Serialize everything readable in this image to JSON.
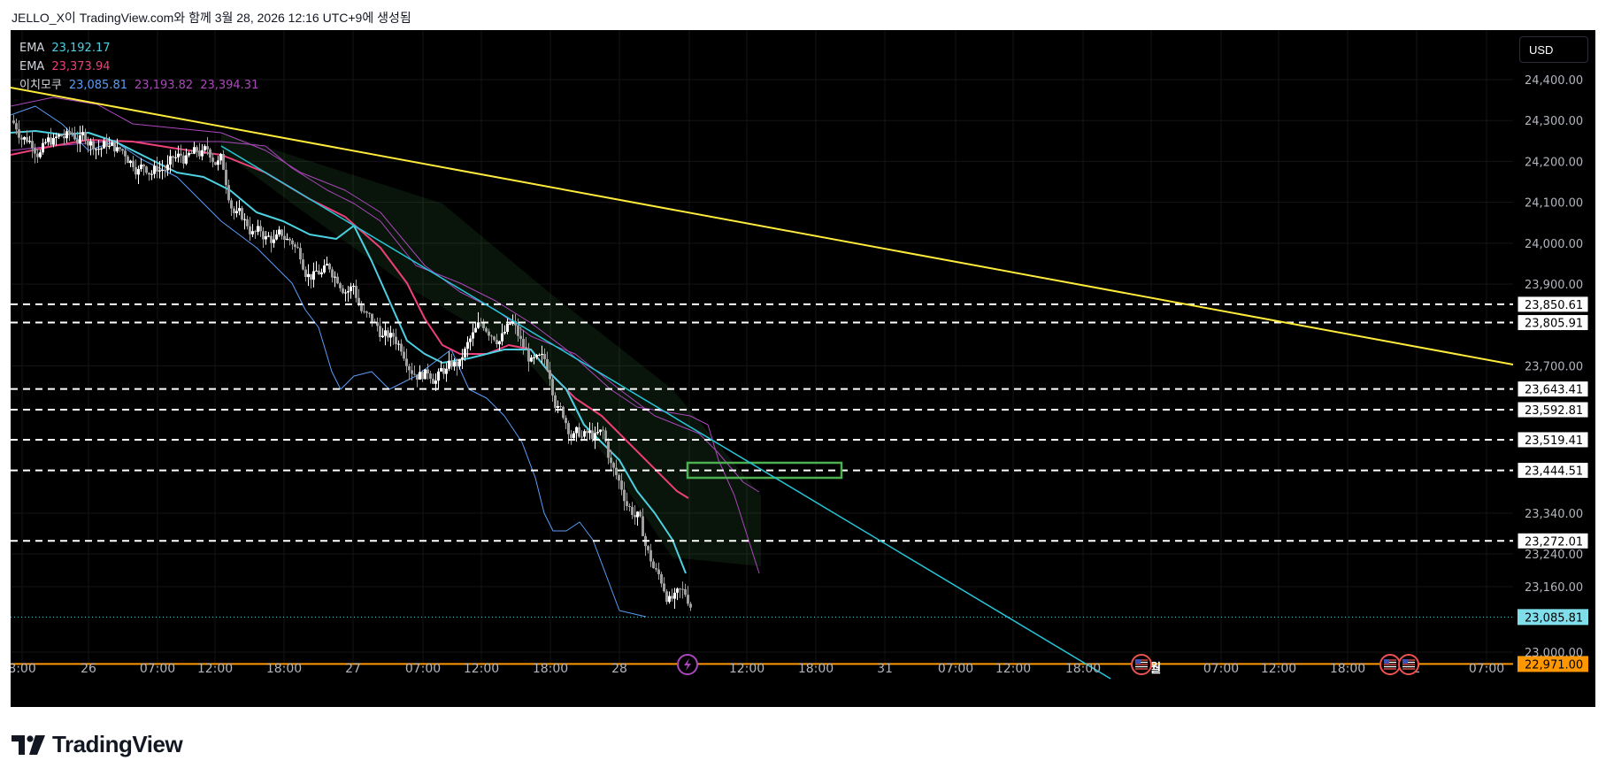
{
  "header": {
    "title": "JELLO_X이 TradingView.com와 함께 3월 28, 2026 12:16 UTC+9에 생성됨"
  },
  "currency_button": {
    "label": "USD"
  },
  "legend": [
    {
      "name": "EMA",
      "values": [
        "23,192.17"
      ],
      "colors": [
        "#4dd0e1"
      ]
    },
    {
      "name": "EMA",
      "values": [
        "23,373.94"
      ],
      "colors": [
        "#ec407a"
      ]
    },
    {
      "name": "이치모쿠",
      "values": [
        "23,085.81",
        "23,193.82",
        "23,394.31"
      ],
      "colors": [
        "#5b9cf6",
        "#ab47bc",
        "#ab47bc"
      ]
    }
  ],
  "logo": {
    "text": "TradingView"
  },
  "events": {
    "lightning": "lightning-icon",
    "us_flags": [
      "us-flag-icon",
      "us-flag-icon",
      "us-flag-icon"
    ]
  },
  "chart_data": {
    "type": "candlestick",
    "ylim": [
      22930,
      24440
    ],
    "y_ticks": [
      "24,400.00",
      "24,300.00",
      "24,200.00",
      "24,100.00",
      "24,000.00",
      "23,900.00",
      "23,700.00",
      "23,340.00",
      "23,240.00",
      "23,160.00",
      "23,000.00"
    ],
    "x_ticks": [
      "8:00",
      "26",
      "07:00",
      "12:00",
      "18:00",
      "27",
      "07:00",
      "12:00",
      "18:00",
      "28",
      "30",
      "12:00",
      "18:00",
      "31",
      "07:00",
      "12:00",
      "18:00",
      "4월",
      "07:00",
      "12:00",
      "18:00",
      "2",
      "07:00"
    ],
    "horizontal_levels": [
      23850.61,
      23805.91,
      23643.41,
      23592.81,
      23519.41,
      23444.51,
      23272.01
    ],
    "level_labels": [
      "23,850.61",
      "23,805.91",
      "23,643.41",
      "23,592.81",
      "23,519.41",
      "23,444.51",
      "23,272.01"
    ],
    "current_price": {
      "value": 23085.81,
      "label": "23,085.81",
      "color": "#80deea"
    },
    "orange_level": {
      "value": 22971.0,
      "label": "22,971.00",
      "color": "#ff9800"
    },
    "ema_fast": {
      "label_value": "23,192.17",
      "color": "#4dd0e1"
    },
    "ema_slow": {
      "label_value": "23,373.94",
      "color": "#ec407a"
    },
    "ichimoku": {
      "conversion": "23,085.81",
      "base": "23,193.82",
      "span": "23,394.31"
    },
    "yellow_trendline": {
      "color": "#ffeb3b"
    },
    "cyan_trendline": {
      "color": "#26c6da"
    },
    "green_box": {
      "color": "#4caf50"
    }
  }
}
